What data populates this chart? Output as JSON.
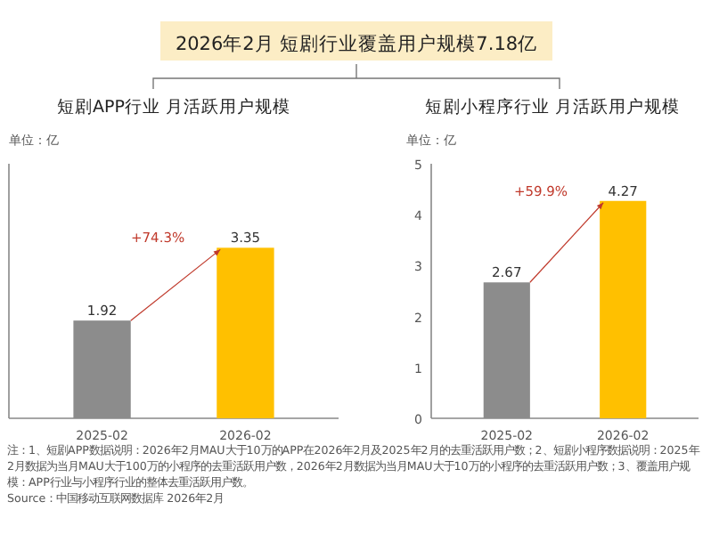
{
  "chart_data": [
    {
      "type": "bar",
      "title": "2026年2月 短剧行业覆盖用户规模7.18亿",
      "subtitle": "短剧APP行业 月活跃用户规模",
      "ylabel": "单位：亿",
      "categories": [
        "2025-02",
        "2026-02"
      ],
      "values": [
        1.92,
        3.35
      ],
      "colors": [
        "#8c8c8c",
        "#ffc000"
      ],
      "ylim": [
        0,
        5
      ],
      "tick_labels": "x",
      "data_labels": true,
      "annotations": [
        "+74.3%"
      ]
    },
    {
      "type": "bar",
      "subtitle": "短剧小程序行业 月活跃用户规模",
      "ylabel": "单位：亿",
      "categories": [
        "2025-02",
        "2026-02"
      ],
      "values": [
        2.67,
        4.27
      ],
      "colors": [
        "#8c8c8c",
        "#ffc000"
      ],
      "ylim": [
        0,
        5
      ],
      "yticks": [
        0,
        1,
        2,
        3,
        4,
        5
      ],
      "data_labels": true,
      "annotations": [
        "+59.9%",
        "注：1、短剧APP数据说明：2026年2月MAU大于10万的APP在2026年2月及2025年2月的去重活跃用户数；2、短剧小程序数据说明：2025年2月数据为当月MAU大于100万的小程序的去重活跃用户数，2026年2月数据为当月MAU大于10万的小程序的去重活跃用户数；3、覆盖用户规模：APP行业与小程序行业的整体去重活跃用户数。",
        "Source：中国移动互联网数据库 2026年2月"
      ]
    }
  ]
}
